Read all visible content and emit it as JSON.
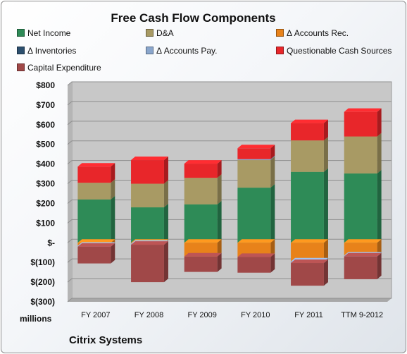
{
  "chart_data": {
    "type": "bar",
    "stacked": true,
    "title": "Free Cash Flow Components",
    "categories": [
      "FY 2007",
      "FY 2008",
      "FY 2009",
      "FY 2010",
      "FY 2011",
      "TTM 9-2012"
    ],
    "ylim": [
      -300,
      800
    ],
    "yticks": [
      -300,
      -200,
      -100,
      0,
      100,
      200,
      300,
      400,
      500,
      600,
      700,
      800
    ],
    "ytick_labels": [
      "$(300)",
      "$(200)",
      "$(100)",
      "$-",
      "$100",
      "$200",
      "$300",
      "$400",
      "$500",
      "$600",
      "$700",
      "$800"
    ],
    "units_label": "millions",
    "grid": true,
    "legend_position": "top",
    "series": [
      {
        "name": "Net Income",
        "color": "#2e8b57",
        "values": [
          220,
          180,
          195,
          280,
          360,
          352
        ]
      },
      {
        "name": "D&A",
        "color": "#a89a64",
        "values": [
          85,
          120,
          135,
          140,
          160,
          188
        ]
      },
      {
        "name": "Δ Accounts Rec.",
        "color": "#e8821a",
        "values": [
          -15,
          -5,
          -70,
          -72,
          -95,
          -65
        ]
      },
      {
        "name": "Δ Inventories",
        "color": "#2c4f6e",
        "values": [
          0,
          0,
          0,
          0,
          0,
          0
        ]
      },
      {
        "name": "Δ Accounts Pay.",
        "color": "#8aa6cc",
        "values": [
          -5,
          -5,
          0,
          5,
          -8,
          -5
        ]
      },
      {
        "name": "Questionable Cash Sources",
        "color": "#e8262a",
        "values": [
          82,
          120,
          72,
          55,
          88,
          125
        ]
      },
      {
        "name": "Capital Expenditure",
        "color": "#a04848",
        "values": [
          -85,
          -190,
          -78,
          -80,
          -115,
          -115
        ]
      }
    ]
  },
  "footer": {
    "company": "Citrix Systems"
  }
}
